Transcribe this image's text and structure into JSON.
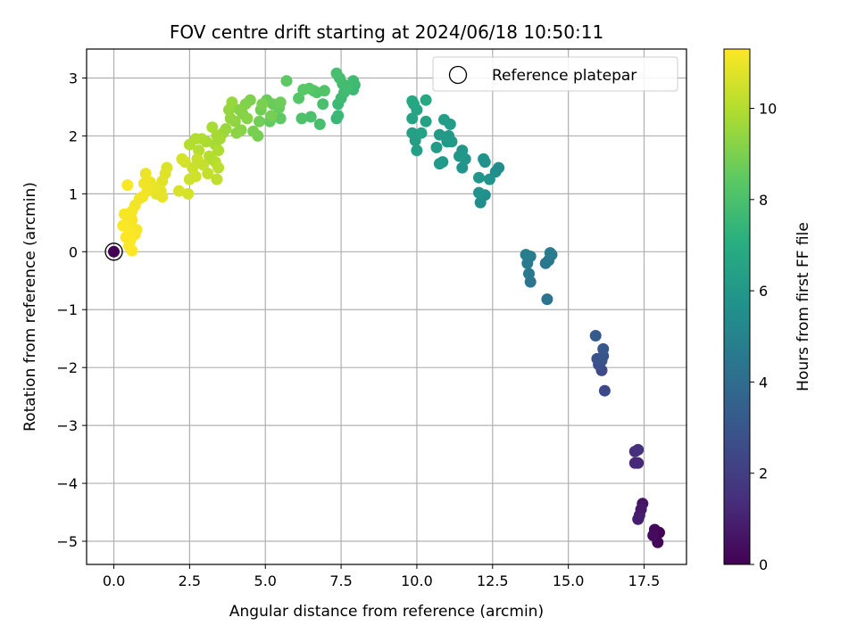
{
  "chart_data": {
    "type": "scatter",
    "title": "FOV centre drift starting at 2024/06/18 10:50:11",
    "xlabel": "Angular distance from reference (arcmin)",
    "ylabel": "Rotation from reference (arcmin)",
    "xlim": [
      -0.9,
      18.9
    ],
    "ylim": [
      -5.4,
      3.5
    ],
    "xticks": [
      "0.0",
      "2.5",
      "5.0",
      "7.5",
      "10.0",
      "12.5",
      "15.0",
      "17.5"
    ],
    "xtick_values": [
      0,
      2.5,
      5,
      7.5,
      10,
      12.5,
      15,
      17.5
    ],
    "yticks": [
      "−5",
      "−4",
      "−3",
      "−2",
      "−1",
      "0",
      "1",
      "2",
      "3"
    ],
    "ytick_values": [
      -5,
      -4,
      -3,
      -2,
      -1,
      0,
      1,
      2,
      3
    ],
    "grid": true,
    "legend": {
      "label": "Reference platepar",
      "position": "top-right",
      "marker": "open-circle"
    },
    "colorbar": {
      "label": "Hours from first FF file",
      "range": [
        0,
        11.3
      ],
      "ticks": [
        "0",
        "2",
        "4",
        "6",
        "8",
        "10"
      ],
      "tick_values": [
        0,
        2,
        4,
        6,
        8,
        10
      ],
      "colormap": "viridis"
    },
    "reference_point": {
      "x": 0,
      "y": 0
    },
    "points": [
      [
        0.0,
        0.0,
        0.0
      ],
      [
        18.0,
        -4.85,
        0.05
      ],
      [
        17.95,
        -5.02,
        0.1
      ],
      [
        17.85,
        -4.8,
        0.2
      ],
      [
        17.8,
        -4.9,
        0.3
      ],
      [
        17.45,
        -4.35,
        0.6
      ],
      [
        17.4,
        -4.45,
        0.7
      ],
      [
        17.35,
        -4.55,
        0.8
      ],
      [
        17.3,
        -4.62,
        0.9
      ],
      [
        17.3,
        -3.65,
        1.2
      ],
      [
        17.2,
        -3.65,
        1.3
      ],
      [
        17.2,
        -3.45,
        1.4
      ],
      [
        17.3,
        -3.42,
        1.5
      ],
      [
        16.2,
        -2.4,
        2.5
      ],
      [
        16.1,
        -2.05,
        2.6
      ],
      [
        16.0,
        -1.95,
        2.7
      ],
      [
        16.1,
        -1.88,
        2.8
      ],
      [
        15.95,
        -1.85,
        2.9
      ],
      [
        16.15,
        -1.8,
        3.0
      ],
      [
        16.15,
        -1.68,
        3.1
      ],
      [
        15.9,
        -1.45,
        3.2
      ],
      [
        14.3,
        -0.82,
        4.3
      ],
      [
        13.75,
        -0.52,
        4.4
      ],
      [
        13.7,
        -0.38,
        4.5
      ],
      [
        13.65,
        -0.2,
        4.6
      ],
      [
        13.75,
        -0.08,
        4.7
      ],
      [
        13.6,
        -0.05,
        4.8
      ],
      [
        14.25,
        -0.2,
        4.4
      ],
      [
        14.35,
        -0.15,
        4.5
      ],
      [
        14.45,
        -0.05,
        4.6
      ],
      [
        14.4,
        -0.02,
        4.7
      ],
      [
        12.1,
        0.85,
        5.5
      ],
      [
        12.25,
        0.98,
        5.6
      ],
      [
        12.05,
        1.02,
        5.7
      ],
      [
        12.4,
        1.25,
        5.8
      ],
      [
        12.05,
        1.28,
        5.9
      ],
      [
        12.6,
        1.38,
        5.6
      ],
      [
        12.7,
        1.45,
        5.5
      ],
      [
        12.2,
        1.6,
        5.7
      ],
      [
        12.25,
        1.55,
        5.75
      ],
      [
        11.5,
        1.45,
        5.8
      ],
      [
        11.6,
        1.6,
        5.9
      ],
      [
        11.4,
        1.65,
        6.0
      ],
      [
        11.5,
        1.75,
        5.95
      ],
      [
        10.85,
        1.55,
        6.0
      ],
      [
        10.75,
        1.52,
        6.05
      ],
      [
        11.0,
        1.9,
        6.0
      ],
      [
        11.15,
        1.9,
        6.05
      ],
      [
        11.05,
        2.0,
        6.1
      ],
      [
        10.75,
        2.02,
        6.1
      ],
      [
        10.65,
        1.8,
        6.15
      ],
      [
        11.1,
        2.2,
        6.2
      ],
      [
        10.9,
        2.28,
        6.25
      ],
      [
        10.0,
        1.75,
        6.3
      ],
      [
        9.95,
        1.92,
        6.35
      ],
      [
        9.85,
        2.05,
        6.4
      ],
      [
        10.15,
        2.05,
        6.45
      ],
      [
        10.3,
        2.25,
        6.5
      ],
      [
        9.85,
        2.3,
        6.55
      ],
      [
        10.0,
        2.45,
        6.6
      ],
      [
        9.9,
        2.55,
        6.65
      ],
      [
        9.85,
        2.6,
        6.7
      ],
      [
        10.3,
        2.62,
        6.75
      ],
      [
        7.35,
        2.3,
        7.5
      ],
      [
        7.4,
        2.35,
        7.55
      ],
      [
        7.4,
        2.55,
        7.6
      ],
      [
        7.5,
        2.65,
        7.7
      ],
      [
        7.6,
        2.75,
        7.75
      ],
      [
        7.55,
        2.9,
        7.8
      ],
      [
        7.45,
        3.0,
        7.85
      ],
      [
        7.35,
        3.08,
        7.9
      ],
      [
        7.9,
        2.8,
        7.6
      ],
      [
        7.95,
        2.88,
        7.65
      ],
      [
        7.9,
        2.95,
        7.7
      ],
      [
        7.7,
        2.85,
        7.8
      ],
      [
        6.8,
        2.2,
        7.9
      ],
      [
        6.5,
        2.33,
        8.0
      ],
      [
        6.2,
        2.3,
        8.05
      ],
      [
        6.9,
        2.55,
        7.95
      ],
      [
        6.7,
        2.75,
        8.1
      ],
      [
        6.95,
        2.78,
        8.15
      ],
      [
        6.6,
        2.78,
        8.2
      ],
      [
        6.1,
        2.65,
        8.25
      ],
      [
        6.45,
        2.82,
        8.3
      ],
      [
        6.25,
        2.8,
        8.35
      ],
      [
        5.7,
        2.95,
        8.4
      ],
      [
        5.5,
        2.3,
        8.5
      ],
      [
        5.15,
        2.25,
        8.55
      ],
      [
        5.45,
        2.48,
        8.6
      ],
      [
        5.25,
        2.55,
        8.65
      ],
      [
        5.05,
        2.62,
        8.7
      ],
      [
        5.5,
        2.58,
        8.75
      ],
      [
        4.85,
        2.45,
        8.8
      ],
      [
        4.8,
        2.25,
        8.85
      ],
      [
        4.75,
        2.0,
        8.9
      ],
      [
        4.6,
        2.08,
        8.95
      ],
      [
        5.2,
        2.35,
        8.9
      ],
      [
        4.9,
        2.55,
        9.0
      ],
      [
        4.5,
        2.62,
        9.05
      ],
      [
        4.35,
        2.55,
        9.1
      ],
      [
        4.25,
        2.38,
        9.15
      ],
      [
        4.4,
        2.3,
        9.2
      ],
      [
        4.2,
        2.1,
        9.25
      ],
      [
        4.05,
        2.05,
        9.3
      ],
      [
        4.0,
        2.25,
        9.35
      ],
      [
        3.85,
        2.3,
        9.4
      ],
      [
        3.8,
        2.45,
        9.45
      ],
      [
        3.9,
        2.58,
        9.5
      ],
      [
        3.7,
        2.12,
        9.55
      ],
      [
        3.6,
        2.05,
        9.6
      ],
      [
        4.15,
        2.45,
        9.2
      ],
      [
        3.5,
        1.95,
        9.7
      ],
      [
        3.35,
        1.85,
        9.75
      ],
      [
        3.25,
        2.15,
        9.8
      ],
      [
        3.4,
        2.0,
        9.75
      ],
      [
        3.05,
        1.9,
        9.85
      ],
      [
        2.9,
        1.95,
        9.9
      ],
      [
        2.7,
        1.95,
        9.95
      ],
      [
        2.5,
        1.85,
        10.0
      ],
      [
        2.8,
        1.75,
        10.05
      ],
      [
        3.15,
        1.65,
        10.1
      ],
      [
        3.35,
        1.55,
        10.1
      ],
      [
        3.45,
        1.75,
        9.9
      ],
      [
        3.2,
        1.6,
        10.0
      ],
      [
        3.45,
        1.45,
        10.15
      ],
      [
        3.4,
        1.25,
        10.2
      ],
      [
        3.1,
        1.35,
        10.25
      ],
      [
        2.95,
        1.5,
        10.3
      ],
      [
        2.75,
        1.6,
        10.35
      ],
      [
        2.6,
        1.45,
        10.4
      ],
      [
        2.5,
        1.25,
        10.45
      ],
      [
        2.7,
        1.3,
        10.5
      ],
      [
        2.35,
        1.55,
        10.55
      ],
      [
        2.25,
        1.6,
        10.6
      ],
      [
        2.45,
        1.0,
        10.6
      ],
      [
        2.15,
        1.05,
        10.65
      ],
      [
        1.75,
        1.45,
        10.7
      ],
      [
        1.7,
        1.35,
        10.75
      ],
      [
        1.6,
        1.22,
        10.8
      ],
      [
        1.55,
        1.05,
        10.85
      ],
      [
        1.6,
        0.95,
        10.9
      ],
      [
        1.4,
        1.0,
        10.9
      ],
      [
        1.3,
        1.12,
        10.95
      ],
      [
        1.2,
        1.2,
        11.0
      ],
      [
        1.05,
        1.35,
        11.0
      ],
      [
        1.1,
        1.05,
        11.05
      ],
      [
        1.0,
        1.18,
        11.05
      ],
      [
        0.95,
        0.95,
        11.1
      ],
      [
        0.85,
        0.92,
        11.1
      ],
      [
        0.7,
        0.8,
        11.1
      ],
      [
        0.6,
        0.7,
        11.15
      ],
      [
        0.75,
        0.38,
        11.15
      ],
      [
        0.7,
        0.3,
        11.2
      ],
      [
        0.6,
        0.55,
        11.2
      ],
      [
        0.55,
        0.45,
        11.2
      ],
      [
        0.5,
        0.35,
        11.25
      ],
      [
        0.55,
        0.2,
        11.25
      ],
      [
        0.5,
        0.1,
        11.25
      ],
      [
        0.6,
        0.02,
        11.3
      ],
      [
        0.45,
        0.6,
        11.2
      ],
      [
        0.35,
        0.65,
        11.2
      ],
      [
        0.45,
        1.15,
        11.25
      ],
      [
        0.3,
        0.45,
        11.25
      ],
      [
        0.4,
        0.25,
        11.3
      ]
    ]
  }
}
